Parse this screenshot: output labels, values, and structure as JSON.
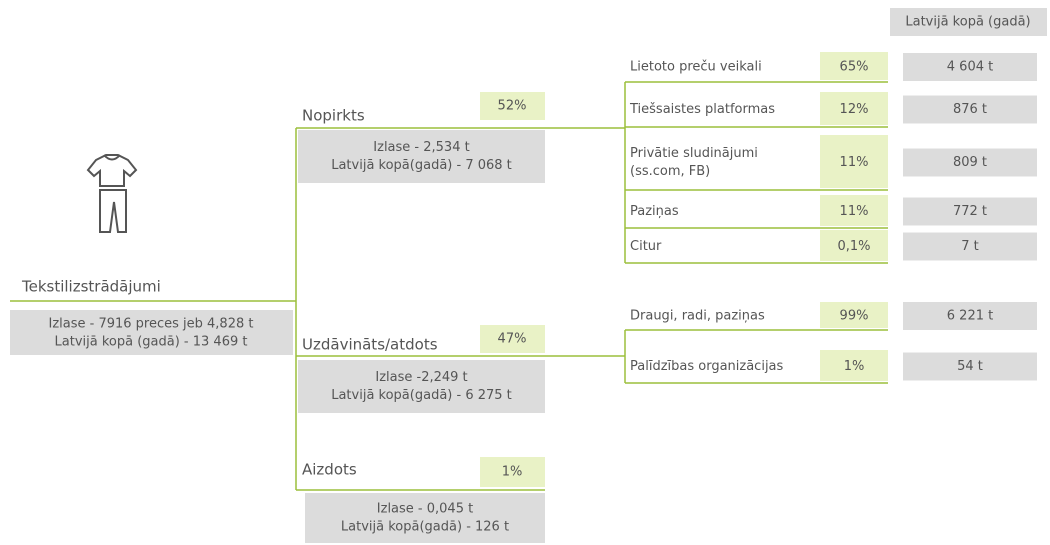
{
  "header": {
    "title": "Latvijā kopā (gadā)"
  },
  "root": {
    "label": "Tekstilizstrādājumi",
    "details": [
      "Izlase - 7916 preces jeb 4,828 t",
      "Latvijā kopā (gadā) - 13 469 t"
    ]
  },
  "branches": [
    {
      "label": "Nopirkts",
      "share": "52%",
      "details": [
        "Izlase - 2,534 t",
        "Latvijā kopā(gadā) - 7 068 t"
      ],
      "channels": [
        {
          "label": [
            "Lietoto preču veikali"
          ],
          "share": "65%",
          "total": "4 604 t"
        },
        {
          "label": [
            "Tiešsaistes platformas"
          ],
          "share": "12%",
          "total": "876 t"
        },
        {
          "label": [
            "Privātie sludinājumi",
            "(ss.com, FB)"
          ],
          "share": "11%",
          "total": "809 t"
        },
        {
          "label": [
            "Paziņas"
          ],
          "share": "11%",
          "total": "772 t"
        },
        {
          "label": [
            "Citur"
          ],
          "share": "0,1%",
          "total": "7 t"
        }
      ]
    },
    {
      "label": "Uzdāvināts/atdots",
      "share": "47%",
      "details": [
        "Izlase -2,249 t",
        "Latvijā kopā(gadā) - 6 275 t"
      ],
      "channels": [
        {
          "label": [
            "Draugi, radi, paziņas"
          ],
          "share": "99%",
          "total": "6 221 t"
        },
        {
          "label": [
            "Palīdzības organizācijas"
          ],
          "share": "1%",
          "total": "54 t"
        }
      ]
    },
    {
      "label": "Aizdots",
      "share": "1%",
      "details": [
        "Izlase - 0,045 t",
        "Latvijā kopā(gadā) - 126 t"
      ],
      "channels": []
    }
  ]
}
